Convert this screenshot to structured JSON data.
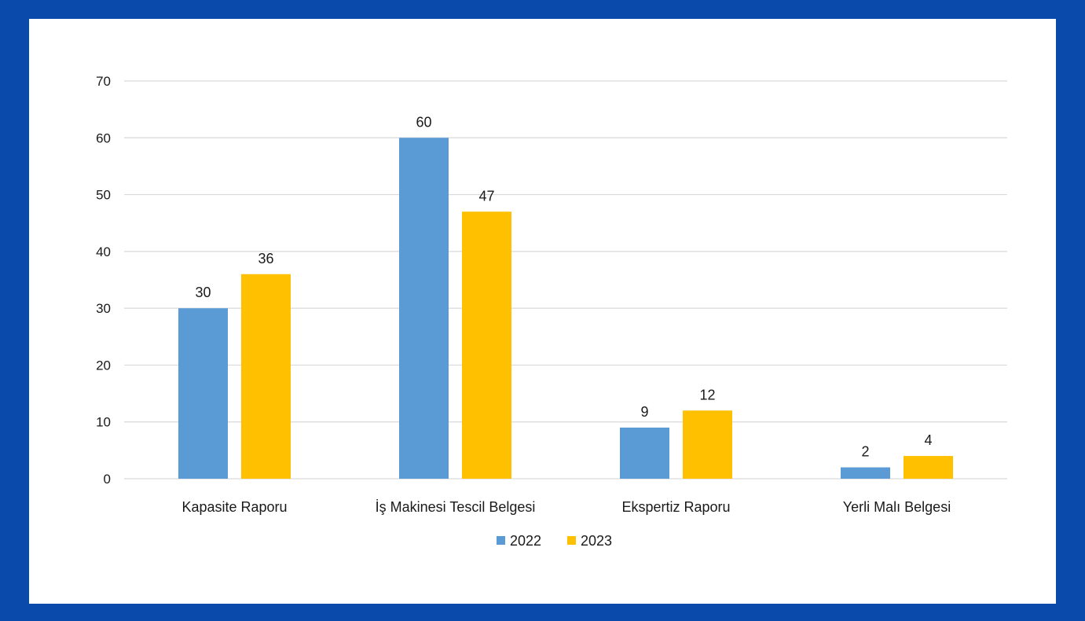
{
  "chart_data": {
    "type": "bar",
    "title": "",
    "xlabel": "",
    "ylabel": "",
    "categories": [
      "Kapasite Raporu",
      "İş Makinesi Tescil Belgesi",
      "Ekspertiz Raporu",
      "Yerli Malı Belgesi"
    ],
    "series": [
      {
        "name": "2022",
        "values": [
          30,
          60,
          9,
          2
        ],
        "color": "#5b9bd5"
      },
      {
        "name": "2023",
        "values": [
          36,
          47,
          12,
          4
        ],
        "color": "#ffc000"
      }
    ],
    "ylim": [
      0,
      70
    ],
    "yticks": [
      0,
      10,
      20,
      30,
      40,
      50,
      60,
      70
    ],
    "grid": true,
    "legend_position": "bottom-center",
    "data_labels": true
  },
  "colors": {
    "frame": "#0a4aaa",
    "background": "#ffffff",
    "gridline": "#d9d9d9",
    "text": "#1a1a1a"
  }
}
